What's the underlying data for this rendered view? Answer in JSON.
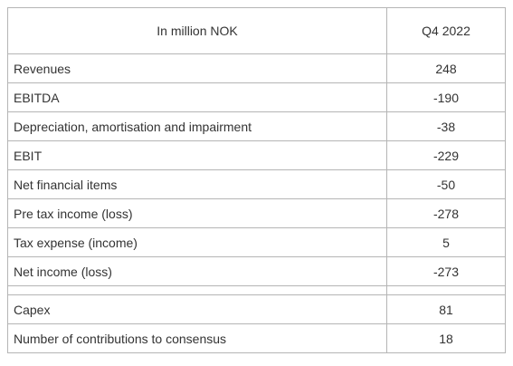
{
  "table": {
    "header": {
      "label": "In million NOK",
      "period": "Q4 2022"
    },
    "rows": [
      {
        "label": "Revenues",
        "value": "248"
      },
      {
        "label": "EBITDA",
        "value": "-190"
      },
      {
        "label": "Depreciation, amortisation and impairment",
        "value": "-38"
      },
      {
        "label": "EBIT",
        "value": "-229"
      },
      {
        "label": "Net financial items",
        "value": "-50"
      },
      {
        "label": "Pre tax income (loss)",
        "value": "-278"
      },
      {
        "label": "Tax expense (income)",
        "value": "5"
      },
      {
        "label": "Net income (loss)",
        "value": "-273"
      }
    ],
    "extra_rows": [
      {
        "label": "Capex",
        "value": "81"
      },
      {
        "label": "Number of contributions to consensus",
        "value": "18"
      }
    ]
  }
}
